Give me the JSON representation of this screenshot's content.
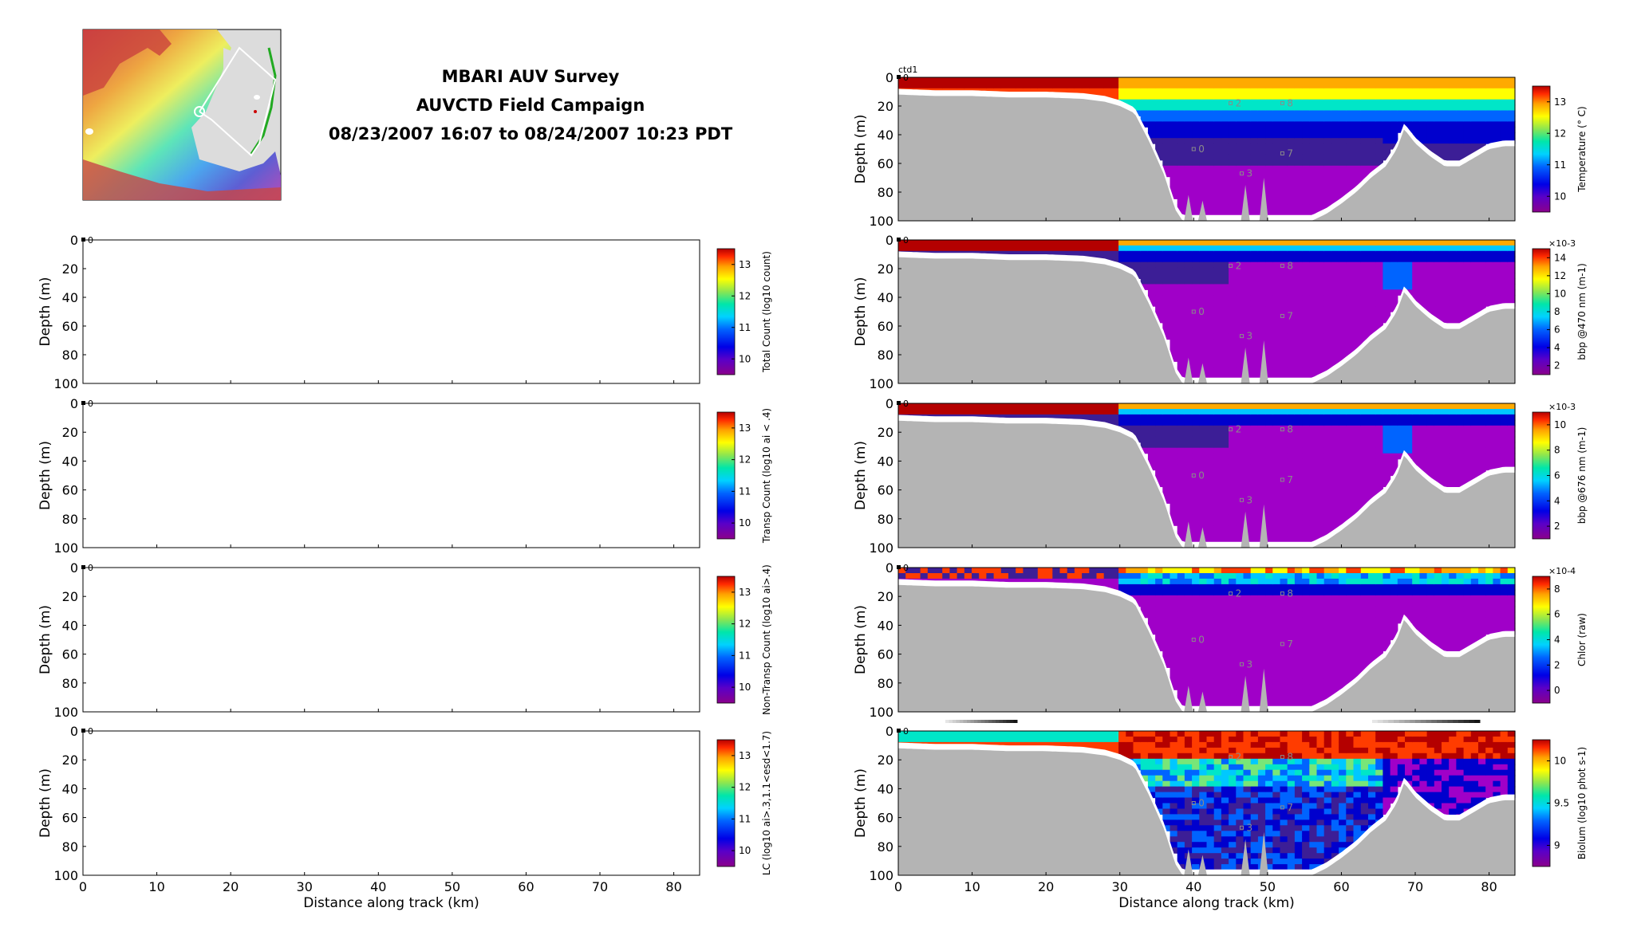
{
  "title": {
    "line1": "MBARI AUV Survey",
    "line2": "AUVCTD Field Campaign",
    "line3": "08/23/2007 16:07 to 08/24/2007 10:23 PDT"
  },
  "colors": {
    "land": "#b4b4b4",
    "cmap": [
      "#8b008b",
      "#a000c8",
      "#3c1e96",
      "#0000cd",
      "#0064ff",
      "#00c8ff",
      "#00e6c8",
      "#78e678",
      "#ffff00",
      "#ffaa00",
      "#ff3c00",
      "#b40000"
    ]
  },
  "chart_data": [
    {
      "id": "left-1",
      "type": "heatmap",
      "ylabel": "Depth (m)",
      "xlabel": "",
      "xlim": [
        0,
        83.5
      ],
      "ylim": [
        100,
        0
      ],
      "yticks": [
        0,
        20,
        40,
        60,
        80,
        100
      ],
      "xticks": [],
      "start_label": "0",
      "colorbar": {
        "label": "Total Count (log10 count)",
        "ticks": [
          "13",
          "12",
          "11",
          "10"
        ],
        "exponent": ""
      },
      "has_data": false
    },
    {
      "id": "left-2",
      "type": "heatmap",
      "ylabel": "Depth (m)",
      "xlabel": "",
      "xlim": [
        0,
        83.5
      ],
      "ylim": [
        100,
        0
      ],
      "yticks": [
        0,
        20,
        40,
        60,
        80,
        100
      ],
      "xticks": [],
      "start_label": "0",
      "colorbar": {
        "label": "Transp Count (log10 ai < .4)",
        "ticks": [
          "13",
          "12",
          "11",
          "10"
        ],
        "exponent": ""
      },
      "has_data": false
    },
    {
      "id": "left-3",
      "type": "heatmap",
      "ylabel": "Depth (m)",
      "xlabel": "",
      "xlim": [
        0,
        83.5
      ],
      "ylim": [
        100,
        0
      ],
      "yticks": [
        0,
        20,
        40,
        60,
        80,
        100
      ],
      "xticks": [],
      "start_label": "0",
      "colorbar": {
        "label": "Non-Transp Count (log10 ai>.4)",
        "ticks": [
          "13",
          "12",
          "11",
          "10"
        ],
        "exponent": ""
      },
      "has_data": false
    },
    {
      "id": "left-4",
      "type": "heatmap",
      "ylabel": "Depth (m)",
      "xlabel": "Distance along track (km)",
      "xlim": [
        0,
        83.5
      ],
      "ylim": [
        100,
        0
      ],
      "yticks": [
        0,
        20,
        40,
        60,
        80,
        100
      ],
      "xticks": [
        0,
        10,
        20,
        30,
        40,
        50,
        60,
        70,
        80
      ],
      "start_label": "0",
      "colorbar": {
        "label": "LC (log10 ai>.3,1.1<esd<1.7)",
        "ticks": [
          "13",
          "12",
          "11",
          "10"
        ],
        "exponent": ""
      },
      "has_data": false
    },
    {
      "id": "right-1",
      "type": "heatmap",
      "ylabel": "Depth (m)",
      "xlabel": "",
      "xlim": [
        0,
        83.5
      ],
      "ylim": [
        100,
        0
      ],
      "yticks": [
        0,
        20,
        40,
        60,
        80,
        100
      ],
      "xticks": [],
      "start_label": "0",
      "corner_label": "ctd1",
      "colorbar": {
        "label": "Temperature (° C)",
        "ticks": [
          "13",
          "12",
          "11",
          "10"
        ],
        "exponent": ""
      },
      "layer_depths": [
        8,
        25,
        38,
        48
      ],
      "profile": "temperature",
      "has_data": true,
      "waypoints": [
        "2",
        "8",
        "0",
        "7",
        "3"
      ]
    },
    {
      "id": "right-2",
      "type": "heatmap",
      "ylabel": "Depth (m)",
      "xlabel": "",
      "xlim": [
        0,
        83.5
      ],
      "ylim": [
        100,
        0
      ],
      "yticks": [
        0,
        20,
        40,
        60,
        80,
        100
      ],
      "xticks": [],
      "start_label": "0",
      "colorbar": {
        "label": "bbp @470 nm (m-1)",
        "ticks": [
          "14",
          "12",
          "10",
          "8",
          "6",
          "4",
          "2"
        ],
        "exponent": "×10-3"
      },
      "profile": "bb470",
      "has_data": true,
      "waypoints": [
        "2",
        "8",
        "0",
        "7",
        "3"
      ]
    },
    {
      "id": "right-3",
      "type": "heatmap",
      "ylabel": "Depth (m)",
      "xlabel": "",
      "xlim": [
        0,
        83.5
      ],
      "ylim": [
        100,
        0
      ],
      "yticks": [
        0,
        20,
        40,
        60,
        80,
        100
      ],
      "xticks": [],
      "start_label": "0",
      "colorbar": {
        "label": "bbp @676 nm (m-1)",
        "ticks": [
          "10",
          "8",
          "6",
          "4",
          "2"
        ],
        "exponent": "×10-3"
      },
      "profile": "bb676",
      "has_data": true,
      "waypoints": [
        "2",
        "8",
        "0",
        "7",
        "3"
      ]
    },
    {
      "id": "right-4",
      "type": "heatmap",
      "ylabel": "Depth (m)",
      "xlabel": "",
      "xlim": [
        0,
        83.5
      ],
      "ylim": [
        100,
        0
      ],
      "yticks": [
        0,
        20,
        40,
        60,
        80,
        100
      ],
      "xticks": [],
      "start_label": "0",
      "colorbar": {
        "label": "Chlor (raw)",
        "ticks": [
          "8",
          "6",
          "4",
          "2",
          "0"
        ],
        "exponent": "×10-4"
      },
      "profile": "chlor",
      "has_data": true,
      "waypoints": [
        "2",
        "8",
        "0",
        "7",
        "3"
      ]
    },
    {
      "id": "right-5",
      "type": "heatmap",
      "ylabel": "Depth (m)",
      "xlabel": "Distance along track (km)",
      "xlim": [
        0,
        83.5
      ],
      "ylim": [
        100,
        0
      ],
      "yticks": [
        0,
        20,
        40,
        60,
        80,
        100
      ],
      "xticks": [
        0,
        10,
        20,
        30,
        40,
        50,
        60,
        70,
        80
      ],
      "start_label": "0",
      "colorbar": {
        "label": "Biolum (log10 phot s-1)",
        "ticks": [
          "10",
          "9.5",
          "9"
        ],
        "exponent": ""
      },
      "profile": "biolum",
      "has_data": true,
      "waypoints": [
        "2",
        "8",
        "0",
        "7",
        "3"
      ]
    }
  ],
  "bathymetry_km_depth": [
    [
      0,
      12
    ],
    [
      5,
      13
    ],
    [
      10,
      13
    ],
    [
      15,
      14
    ],
    [
      20,
      14
    ],
    [
      25,
      15
    ],
    [
      28,
      17
    ],
    [
      30,
      20
    ],
    [
      32,
      25
    ],
    [
      34,
      45
    ],
    [
      36,
      68
    ],
    [
      37.5,
      92
    ],
    [
      38.5,
      100
    ],
    [
      44,
      100
    ],
    [
      52,
      100
    ],
    [
      56,
      100
    ],
    [
      58,
      95
    ],
    [
      60,
      88
    ],
    [
      62,
      80
    ],
    [
      64,
      70
    ],
    [
      66,
      62
    ],
    [
      67.5,
      50
    ],
    [
      68.5,
      36
    ],
    [
      70,
      46
    ],
    [
      72,
      55
    ],
    [
      74,
      62
    ],
    [
      76,
      62
    ],
    [
      78,
      56
    ],
    [
      80,
      50
    ],
    [
      82,
      48
    ],
    [
      83.5,
      48
    ]
  ]
}
